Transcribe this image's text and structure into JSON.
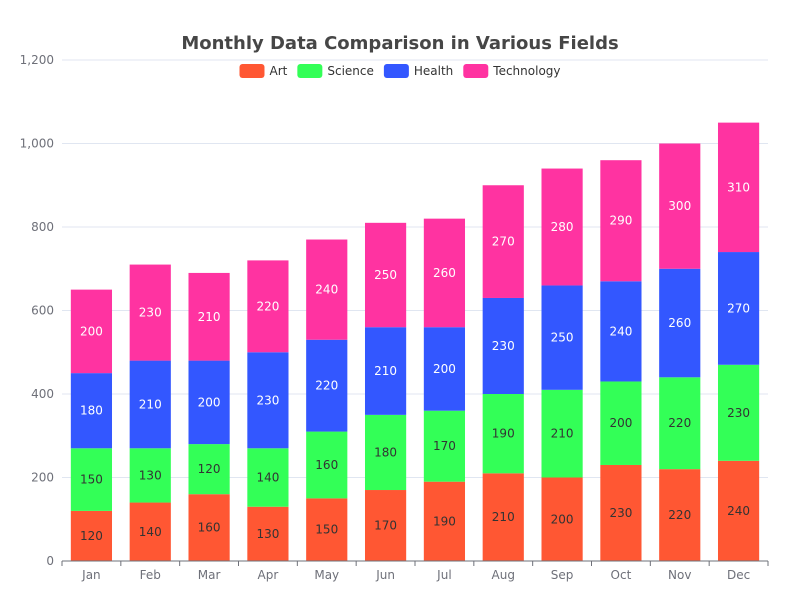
{
  "chart_data": {
    "type": "bar",
    "stacked": true,
    "title": "Monthly Data Comparison in Various Fields",
    "categories": [
      "Jan",
      "Feb",
      "Mar",
      "Apr",
      "May",
      "Jun",
      "Jul",
      "Aug",
      "Sep",
      "Oct",
      "Nov",
      "Dec"
    ],
    "series": [
      {
        "name": "Art",
        "color": "#ff5733",
        "values": [
          120,
          140,
          160,
          130,
          150,
          170,
          190,
          210,
          200,
          230,
          220,
          240
        ]
      },
      {
        "name": "Science",
        "color": "#33ff57",
        "values": [
          150,
          130,
          120,
          140,
          160,
          180,
          170,
          190,
          210,
          200,
          220,
          230
        ]
      },
      {
        "name": "Health",
        "color": "#3357ff",
        "values": [
          180,
          210,
          200,
          230,
          220,
          210,
          200,
          230,
          250,
          240,
          260,
          270
        ]
      },
      {
        "name": "Technology",
        "color": "#ff33a1",
        "values": [
          200,
          230,
          210,
          220,
          240,
          250,
          260,
          270,
          280,
          290,
          300,
          310
        ]
      }
    ],
    "y_ticks": [
      "0",
      "200",
      "400",
      "600",
      "800",
      "1,000",
      "1,200"
    ],
    "ylim": [
      0,
      1200
    ],
    "legend_position": "top-center",
    "grid": true
  }
}
